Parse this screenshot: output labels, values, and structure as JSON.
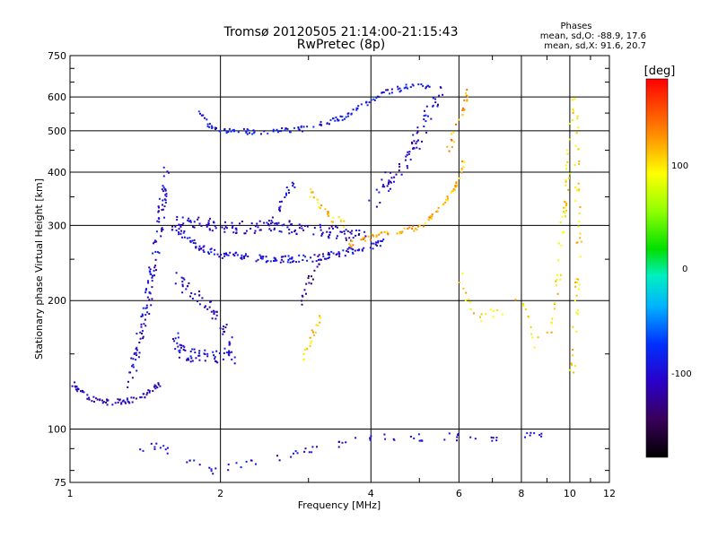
{
  "chart_data": {
    "type": "scatter",
    "title": "Tromsø 20120505 21:14:00-21:15:43",
    "subtitle": "RwPretec (8p)",
    "phases": {
      "heading": "Phases",
      "line_o": "mean, sd,O: -88.9, 17.6",
      "line_x": "mean, sd,X: 91.6, 20.7"
    },
    "xlabel": "Frequency [MHz]",
    "ylabel": "Stationary phase Virtual Height [km]",
    "x_scale": "log",
    "y_scale": "log",
    "xlim": [
      1,
      12
    ],
    "ylim": [
      75,
      750
    ],
    "x_ticks": [
      "1",
      "2",
      "4",
      "6",
      "8",
      "10",
      "12"
    ],
    "y_ticks": [
      "75",
      "100",
      "200",
      "300",
      "400",
      "500",
      "600",
      "750"
    ],
    "grid": true,
    "colorbar": {
      "label": "[deg]",
      "range": [
        -180,
        180
      ],
      "ticks": [
        "100",
        "0",
        "-100"
      ]
    },
    "traces": [
      {
        "phase": -110,
        "density": 4,
        "spread": 3,
        "points": [
          [
            1.0,
            130
          ],
          [
            1.05,
            122
          ],
          [
            1.1,
            118
          ],
          [
            1.2,
            116
          ],
          [
            1.3,
            117
          ],
          [
            1.4,
            120
          ],
          [
            1.5,
            128
          ]
        ]
      },
      {
        "phase": -100,
        "density": 3,
        "spread": 8,
        "points": [
          [
            1.3,
            130
          ],
          [
            1.35,
            150
          ],
          [
            1.4,
            180
          ],
          [
            1.45,
            230
          ],
          [
            1.5,
            290
          ],
          [
            1.52,
            340
          ],
          [
            1.55,
            400
          ]
        ]
      },
      {
        "phase": -100,
        "density": 5,
        "spread": 9,
        "points": [
          [
            1.6,
            165
          ],
          [
            1.7,
            150
          ],
          [
            1.8,
            148
          ],
          [
            1.9,
            150
          ],
          [
            2.0,
            150
          ],
          [
            2.1,
            148
          ]
        ]
      },
      {
        "phase": -105,
        "density": 3,
        "spread": 7,
        "points": [
          [
            1.6,
            230
          ],
          [
            1.7,
            215
          ],
          [
            1.8,
            205
          ],
          [
            1.9,
            195
          ],
          [
            2.0,
            175
          ],
          [
            2.1,
            160
          ]
        ]
      },
      {
        "phase": -95,
        "density": 4,
        "spread": 4,
        "points": [
          [
            1.6,
            300
          ],
          [
            1.8,
            268
          ],
          [
            2.0,
            258
          ],
          [
            2.3,
            253
          ],
          [
            2.6,
            251
          ],
          [
            3.0,
            252
          ],
          [
            3.3,
            256
          ],
          [
            3.6,
            262
          ],
          [
            3.9,
            268
          ],
          [
            4.2,
            275
          ]
        ]
      },
      {
        "phase": -108,
        "density": 4,
        "spread": 7,
        "points": [
          [
            1.6,
            310
          ],
          [
            1.8,
            305
          ],
          [
            2.0,
            300
          ],
          [
            2.3,
            298
          ],
          [
            2.6,
            300
          ],
          [
            3.0,
            295
          ],
          [
            3.3,
            292
          ],
          [
            3.6,
            288
          ],
          [
            3.9,
            282
          ]
        ]
      },
      {
        "phase": 115,
        "density": 3,
        "spread": 3,
        "points": [
          [
            3.6,
            272
          ],
          [
            4.0,
            284
          ],
          [
            4.4,
            290
          ],
          [
            4.8,
            295
          ],
          [
            5.1,
            305
          ],
          [
            5.4,
            325
          ],
          [
            5.7,
            350
          ],
          [
            5.9,
            375
          ],
          [
            6.1,
            420
          ]
        ]
      },
      {
        "phase": -102,
        "density": 3,
        "spread": 9,
        "points": [
          [
            4.0,
            340
          ],
          [
            4.3,
            380
          ],
          [
            4.6,
            420
          ],
          [
            4.9,
            470
          ],
          [
            5.1,
            520
          ],
          [
            5.3,
            570
          ],
          [
            5.5,
            610
          ]
        ]
      },
      {
        "phase": 110,
        "density": 3,
        "spread": 5,
        "points": [
          [
            3.0,
            360
          ],
          [
            3.1,
            345
          ],
          [
            3.2,
            330
          ],
          [
            3.3,
            318
          ],
          [
            3.5,
            305
          ]
        ]
      },
      {
        "phase": -90,
        "density": 3,
        "spread": 3,
        "points": [
          [
            1.8,
            560
          ],
          [
            1.9,
            515
          ],
          [
            2.05,
            500
          ],
          [
            2.5,
            500
          ],
          [
            3.0,
            510
          ],
          [
            3.5,
            540
          ],
          [
            3.9,
            580
          ],
          [
            4.2,
            615
          ],
          [
            4.7,
            635
          ],
          [
            5.2,
            640
          ]
        ]
      },
      {
        "phase": 120,
        "density": 2,
        "spread": 6,
        "points": [
          [
            5.7,
            450
          ],
          [
            5.9,
            500
          ],
          [
            6.1,
            560
          ],
          [
            6.2,
            620
          ]
        ]
      },
      {
        "phase": 105,
        "density": 2,
        "spread": 4,
        "points": [
          [
            2.9,
            145
          ],
          [
            3.0,
            160
          ],
          [
            3.1,
            175
          ],
          [
            3.15,
            185
          ]
        ]
      },
      {
        "phase": -130,
        "density": 2,
        "spread": 5,
        "points": [
          [
            2.9,
            200
          ],
          [
            3.0,
            225
          ],
          [
            3.1,
            245
          ],
          [
            3.2,
            255
          ]
        ]
      },
      {
        "phase": -95,
        "density": 2,
        "spread": 4,
        "points": [
          [
            2.5,
            300
          ],
          [
            2.6,
            330
          ],
          [
            2.7,
            360
          ],
          [
            2.8,
            380
          ]
        ]
      },
      {
        "phase": -100,
        "density": 1,
        "spread": 4,
        "points": [
          [
            1.3,
            90
          ],
          [
            1.5,
            92
          ],
          [
            1.9,
            80
          ],
          [
            4.2,
            97
          ],
          [
            4.6,
            95
          ],
          [
            5.4,
            97
          ],
          [
            6.6,
            95
          ],
          [
            8.7,
            98
          ]
        ]
      },
      {
        "phase": 100,
        "density": 1,
        "spread": 6,
        "points": [
          [
            6.0,
            230
          ],
          [
            6.4,
            180
          ],
          [
            8.0,
            200
          ],
          [
            8.5,
            160
          ],
          [
            9.2,
            170
          ],
          [
            10.2,
            600
          ],
          [
            10.3,
            380
          ],
          [
            10.4,
            280
          ],
          [
            10.1,
            140
          ]
        ]
      }
    ]
  }
}
